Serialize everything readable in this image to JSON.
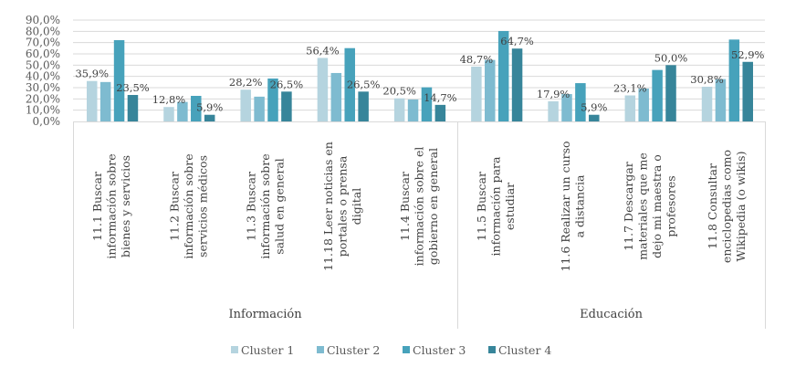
{
  "chart_data": {
    "type": "bar",
    "title": "",
    "xlabel": "",
    "ylabel": "",
    "ylim": [
      0,
      90
    ],
    "yticks": [
      "0,0%",
      "10,0%",
      "20,0%",
      "30,0%",
      "40,0%",
      "50,0%",
      "60,0%",
      "70,0%",
      "80,0%",
      "90,0%"
    ],
    "grid": true,
    "legend_position": "bottom",
    "groups": [
      {
        "label": "Información",
        "category_count": 5
      },
      {
        "label": "Educación",
        "category_count": 4
      }
    ],
    "categories": [
      [
        "11.1 Buscar",
        "información sobre",
        "bienes y servicios"
      ],
      [
        "11.2 Buscar",
        "información sobre",
        "servicios médicos"
      ],
      [
        "11.3 Buscar",
        "información sobre",
        "salud en general"
      ],
      [
        "11.18 Leer noticias en",
        "portales o prensa",
        "digital"
      ],
      [
        "11.4 Buscar",
        "información sobre el",
        "gobierno en general"
      ],
      [
        "11.5 Buscar",
        "información para",
        "estudiar"
      ],
      [
        "11.6 Realizar un curso",
        "a distancia"
      ],
      [
        "11.7 Descargar",
        "materiales que me",
        "dejo mi maestra o",
        "profesores"
      ],
      [
        "11.8 Consultar",
        "enciclopedias como",
        "Wikipedia (o wikis)"
      ]
    ],
    "series": [
      {
        "name": "Cluster 1",
        "color": "#b5d4df",
        "values": [
          35.9,
          12.8,
          28.2,
          56.4,
          20.5,
          48.7,
          17.9,
          23.1,
          30.8
        ],
        "labeled": true
      },
      {
        "name": "Cluster 2",
        "color": "#7ebbd0",
        "values": [
          35.0,
          17.3,
          22.0,
          43.0,
          19.5,
          54.6,
          24.3,
          29.2,
          37.6
        ],
        "labeled": false
      },
      {
        "name": "Cluster 3",
        "color": "#47a2bb",
        "values": [
          72.2,
          22.7,
          38.1,
          65.1,
          30.3,
          80.3,
          34.0,
          45.7,
          72.7
        ],
        "labeled": false
      },
      {
        "name": "Cluster 4",
        "color": "#37859a",
        "values": [
          23.5,
          5.9,
          26.5,
          26.5,
          14.7,
          64.7,
          5.9,
          50.0,
          52.9
        ],
        "labeled": true
      }
    ],
    "data_labels": {
      "Cluster 1": [
        "35,9%",
        "12,8%",
        "28,2%",
        "56,4%",
        "20,5%",
        "48,7%",
        "17,9%",
        "23,1%",
        "30,8%"
      ],
      "Cluster 4": [
        "23,5%",
        "5,9%",
        "26,5%",
        "26,5%",
        "14,7%",
        "64,7%",
        "5,9%",
        "50,0%",
        "52,9%"
      ]
    }
  }
}
